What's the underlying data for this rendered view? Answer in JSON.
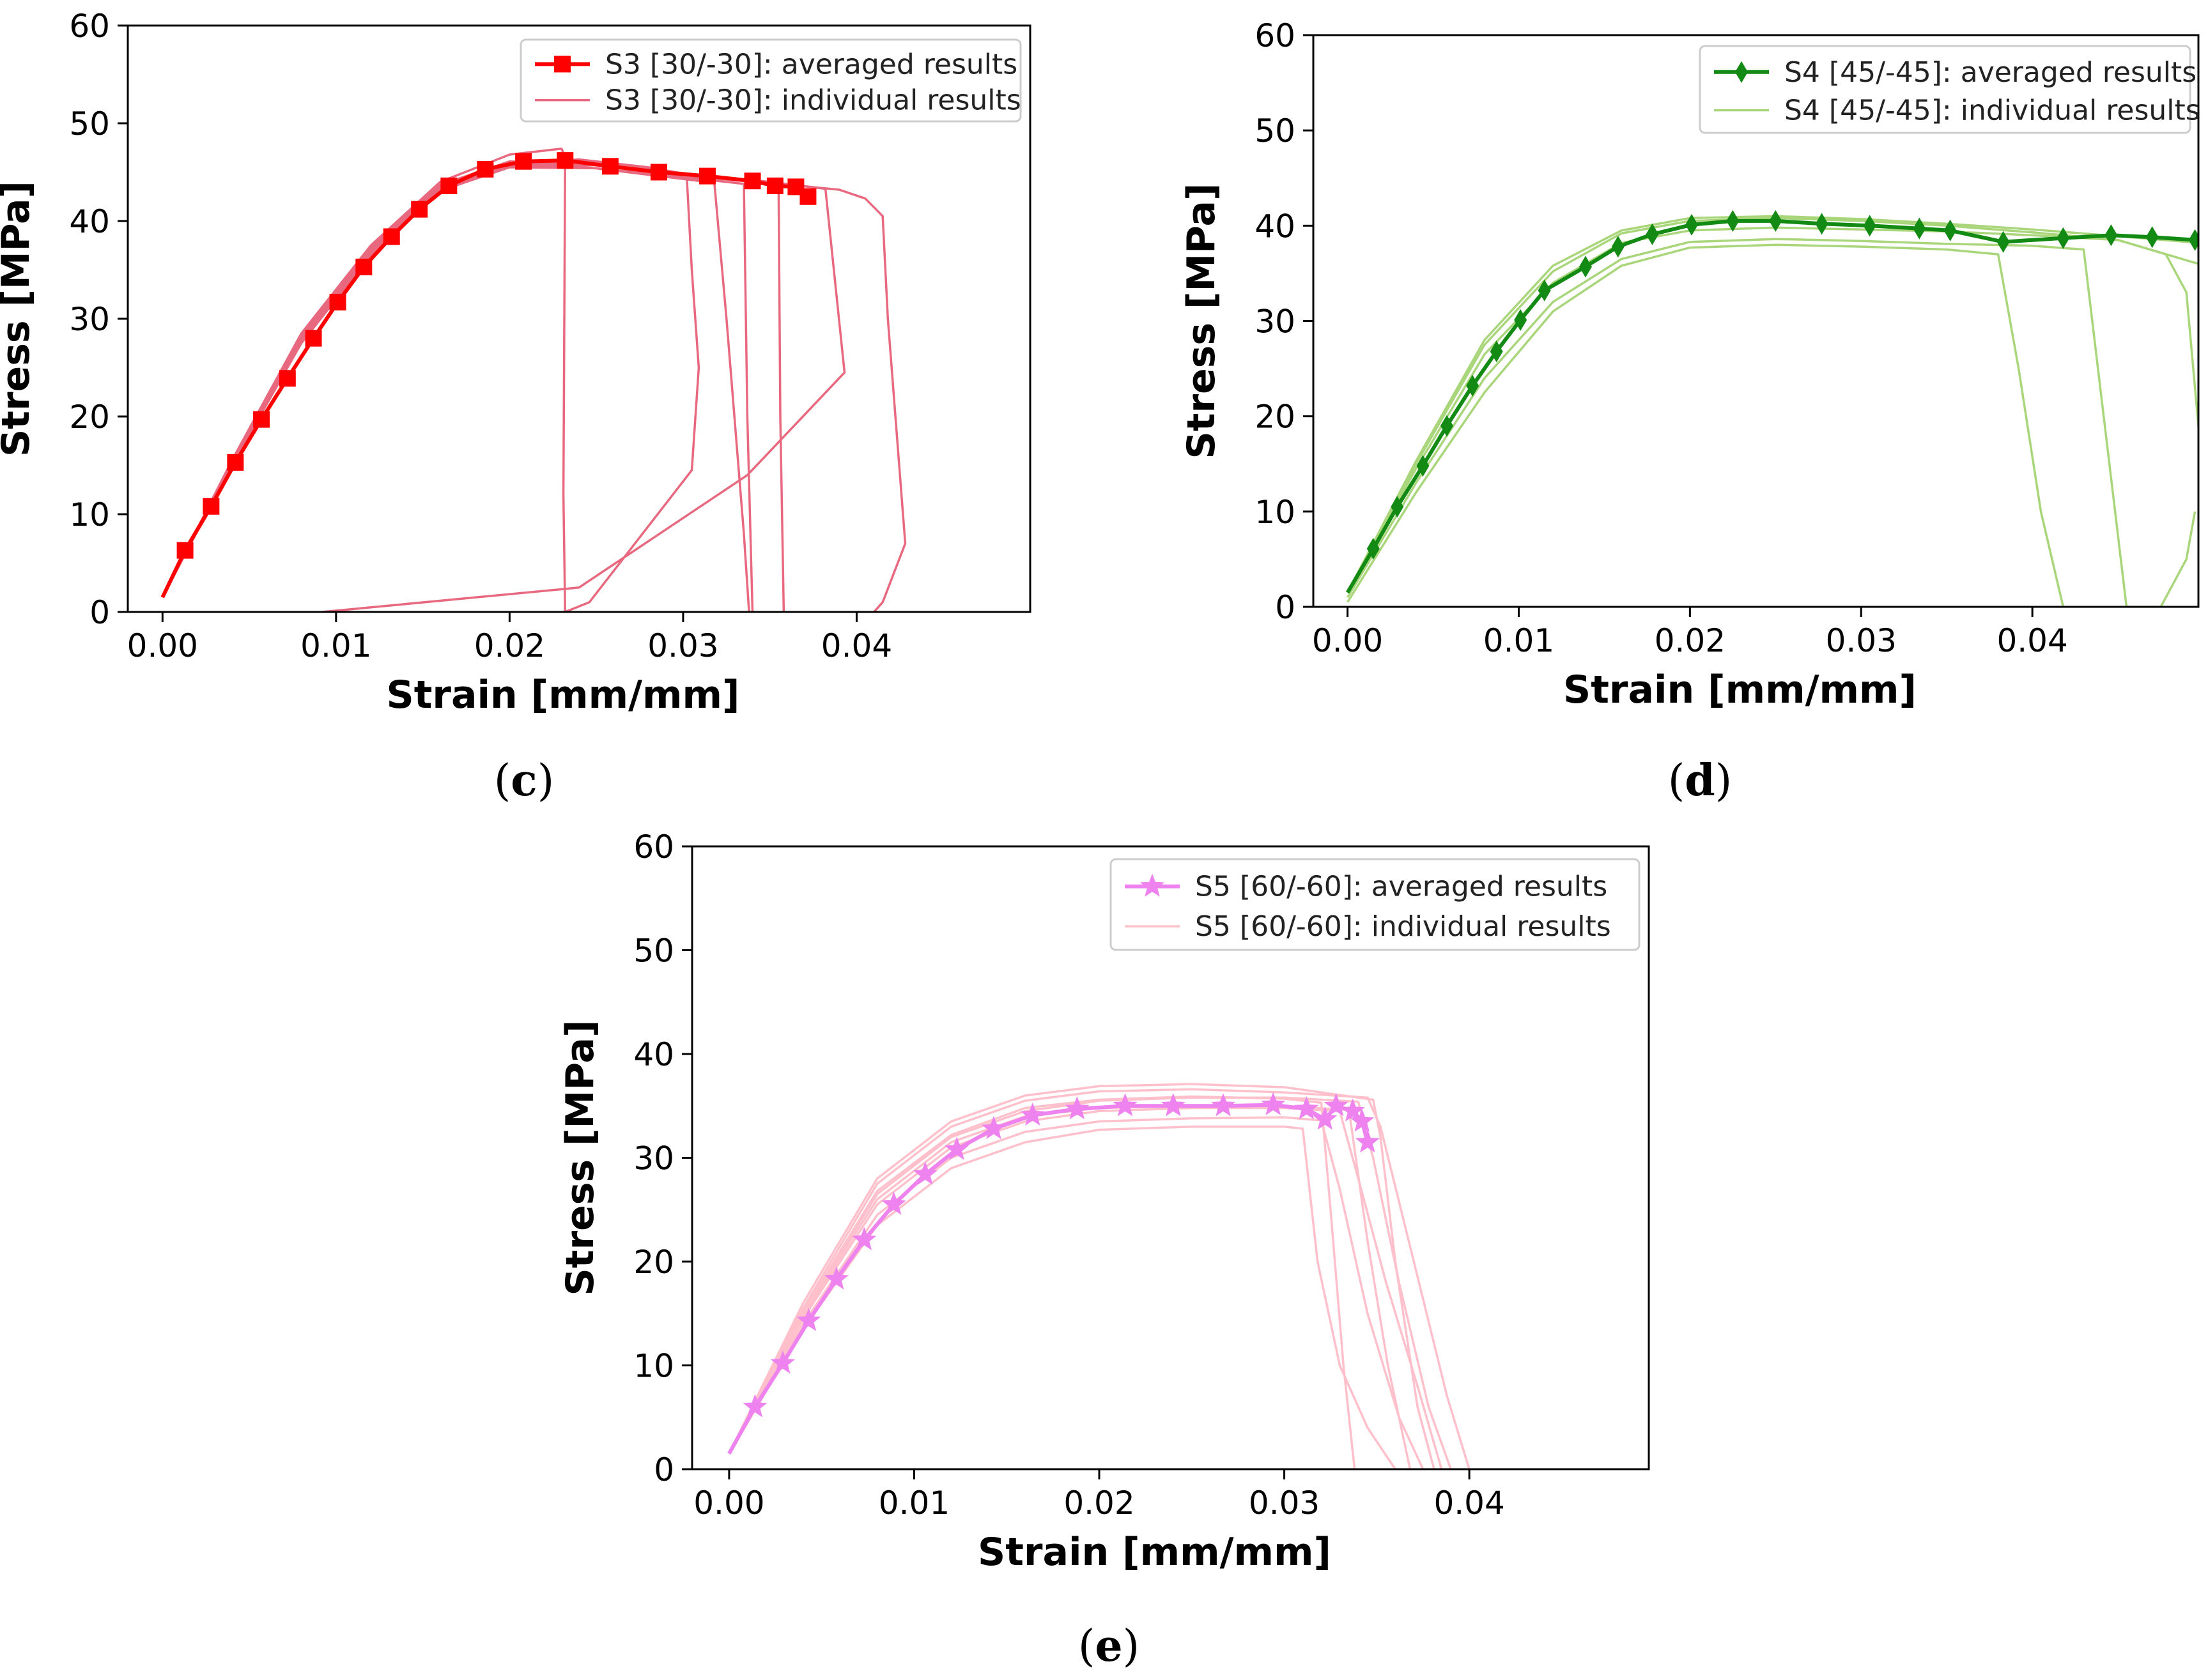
{
  "figure": {
    "panels": [
      "c",
      "d",
      "e"
    ]
  },
  "chart_data": [
    {
      "id": "c",
      "type": "line",
      "caption": "c",
      "xlabel": "Strain [mm/mm]",
      "ylabel": "Stress [MPa]",
      "xlim": [
        -0.002,
        0.05
      ],
      "ylim": [
        0,
        60
      ],
      "xticks": [
        0.0,
        0.01,
        0.02,
        0.03,
        0.04
      ],
      "xtick_labels": [
        "0.00",
        "0.01",
        "0.02",
        "0.03",
        "0.04"
      ],
      "yticks": [
        0,
        10,
        20,
        30,
        40,
        50,
        60
      ],
      "ytick_labels": [
        "0",
        "10",
        "20",
        "30",
        "40",
        "50",
        "60"
      ],
      "legend": {
        "location": "upper right",
        "entries": [
          "S3 [30/-30]: averaged results",
          "S3 [30/-30]: individual results"
        ]
      },
      "colors": {
        "average": "#ff0000",
        "individual": "#e8697f"
      },
      "marker": "square",
      "series": [
        {
          "name": "S3 [30/-30]: averaged results",
          "role": "average",
          "x": [
            0.0,
            0.0013,
            0.0028,
            0.0042,
            0.0057,
            0.0072,
            0.0087,
            0.0101,
            0.0116,
            0.0132,
            0.0148,
            0.0165,
            0.0186,
            0.0208,
            0.0232,
            0.0258,
            0.0286,
            0.0314,
            0.034,
            0.0353,
            0.0365,
            0.0372
          ],
          "y": [
            1.5,
            6.3,
            10.8,
            15.3,
            19.7,
            23.9,
            28.0,
            31.7,
            35.3,
            38.4,
            41.2,
            43.6,
            45.3,
            46.1,
            46.2,
            45.6,
            45.0,
            44.6,
            44.1,
            43.6,
            43.5,
            42.5
          ]
        },
        {
          "name": "S3 individual 1",
          "role": "individual",
          "x": [
            0.0,
            0.004,
            0.008,
            0.012,
            0.016,
            0.02,
            0.023,
            0.0232,
            0.0231,
            0.0232
          ],
          "y": [
            1.5,
            15.5,
            28.5,
            37.5,
            44.0,
            46.8,
            47.4,
            46.5,
            12.0,
            0.0
          ]
        },
        {
          "name": "S3 individual 2",
          "role": "individual",
          "x": [
            0.0,
            0.004,
            0.008,
            0.012,
            0.016,
            0.02,
            0.024,
            0.028,
            0.0302,
            0.0305,
            0.0309,
            0.0305,
            0.0246,
            0.0232
          ],
          "y": [
            1.5,
            15.0,
            27.5,
            36.5,
            43.0,
            45.8,
            46.3,
            45.5,
            44.8,
            35.0,
            25.0,
            14.5,
            1.0,
            0.0
          ]
        },
        {
          "name": "S3 individual 3",
          "role": "individual",
          "x": [
            0.0,
            0.004,
            0.008,
            0.012,
            0.016,
            0.02,
            0.024,
            0.03,
            0.0318,
            0.0325,
            0.0335,
            0.0338
          ],
          "y": [
            1.5,
            15.2,
            28.0,
            37.0,
            43.3,
            45.7,
            45.6,
            44.3,
            43.9,
            30.0,
            8.0,
            0.0
          ]
        },
        {
          "name": "S3 individual 4",
          "role": "individual",
          "x": [
            0.0,
            0.004,
            0.008,
            0.012,
            0.016,
            0.02,
            0.025,
            0.031,
            0.0335,
            0.0337,
            0.034
          ],
          "y": [
            1.5,
            15.0,
            27.8,
            36.8,
            43.1,
            45.5,
            45.4,
            44.3,
            43.8,
            20.0,
            0.0
          ]
        },
        {
          "name": "S3 individual 5",
          "role": "individual",
          "x": [
            0.0,
            0.004,
            0.008,
            0.012,
            0.016,
            0.02,
            0.025,
            0.03,
            0.0355,
            0.0356,
            0.0358
          ],
          "y": [
            1.5,
            15.1,
            27.9,
            37.1,
            43.4,
            45.9,
            45.7,
            44.6,
            43.8,
            20.0,
            0.0
          ]
        },
        {
          "name": "S3 individual 6",
          "role": "individual",
          "x": [
            0.0,
            0.004,
            0.008,
            0.012,
            0.016,
            0.02,
            0.025,
            0.03,
            0.035,
            0.0382,
            0.0393,
            0.0337,
            0.024,
            0.0092
          ],
          "y": [
            1.5,
            15.3,
            28.2,
            37.3,
            43.6,
            46.0,
            45.8,
            44.9,
            44.0,
            43.3,
            24.5,
            14.0,
            2.5,
            0.0
          ]
        },
        {
          "name": "S3 individual 7",
          "role": "individual",
          "x": [
            0.0,
            0.004,
            0.008,
            0.012,
            0.016,
            0.02,
            0.025,
            0.03,
            0.035,
            0.039,
            0.0405,
            0.0415,
            0.0418,
            0.0428,
            0.0415,
            0.041
          ],
          "y": [
            1.5,
            15.4,
            28.3,
            37.4,
            43.7,
            46.1,
            45.9,
            44.9,
            43.9,
            43.2,
            42.3,
            40.5,
            30.0,
            7.0,
            1.0,
            0.0
          ]
        }
      ]
    },
    {
      "id": "d",
      "type": "line",
      "caption": "d",
      "xlabel": "Strain [mm/mm]",
      "ylabel": "Stress [MPa]",
      "xlim": [
        -0.002,
        0.0497
      ],
      "ylim": [
        0,
        60
      ],
      "xticks": [
        0.0,
        0.01,
        0.02,
        0.03,
        0.04
      ],
      "xtick_labels": [
        "0.00",
        "0.01",
        "0.02",
        "0.03",
        "0.04"
      ],
      "yticks": [
        0,
        10,
        20,
        30,
        40,
        50,
        60
      ],
      "ytick_labels": [
        "0",
        "10",
        "20",
        "30",
        "40",
        "50",
        "60"
      ],
      "legend": {
        "location": "upper right",
        "entries": [
          "S4 [45/-45]: averaged results",
          "S4 [45/-45]: individual results"
        ]
      },
      "colors": {
        "average": "#138a13",
        "individual": "#a9d67a"
      },
      "marker": "thin_diamond",
      "series": [
        {
          "name": "S4 [45/-45]: averaged results",
          "role": "average",
          "x": [
            0.0,
            0.0015,
            0.0029,
            0.0044,
            0.0058,
            0.0073,
            0.0087,
            0.0101,
            0.0115,
            0.0139,
            0.0158,
            0.0178,
            0.0201,
            0.0225,
            0.025,
            0.0277,
            0.0305,
            0.0334,
            0.0352,
            0.0383,
            0.0418,
            0.0446,
            0.047,
            0.0495
          ],
          "y": [
            1.5,
            6.1,
            10.5,
            14.8,
            19.0,
            23.2,
            26.8,
            30.1,
            33.2,
            35.7,
            37.8,
            39.1,
            40.1,
            40.5,
            40.5,
            40.2,
            40.0,
            39.7,
            39.5,
            38.3,
            38.7,
            39.0,
            38.8,
            38.5
          ]
        },
        {
          "name": "S4 individual 1",
          "role": "individual",
          "x": [
            0.0,
            0.004,
            0.008,
            0.012,
            0.016,
            0.02,
            0.025,
            0.03,
            0.035,
            0.038,
            0.0392,
            0.0405,
            0.0418
          ],
          "y": [
            0.5,
            12.0,
            22.5,
            31.0,
            35.8,
            37.7,
            38.0,
            37.8,
            37.5,
            37.0,
            25.0,
            10.0,
            0.0
          ]
        },
        {
          "name": "S4 individual 2",
          "role": "individual",
          "x": [
            0.0,
            0.004,
            0.008,
            0.012,
            0.016,
            0.02,
            0.025,
            0.03,
            0.035,
            0.04,
            0.043,
            0.0435,
            0.0445,
            0.0455,
            0.0475,
            0.049,
            0.0495
          ],
          "y": [
            1.0,
            13.0,
            24.0,
            32.0,
            36.5,
            38.3,
            38.6,
            38.4,
            38.1,
            37.9,
            37.5,
            30.0,
            15.0,
            0.0,
            0.0,
            5.0,
            10.0
          ]
        },
        {
          "name": "S4 individual 3",
          "role": "individual",
          "x": [
            0.0,
            0.004,
            0.008,
            0.012,
            0.016,
            0.02,
            0.025,
            0.03,
            0.035,
            0.04,
            0.045,
            0.0478,
            0.049,
            0.0497
          ],
          "y": [
            1.5,
            14.5,
            26.5,
            34.0,
            38.2,
            39.5,
            39.8,
            39.6,
            39.4,
            39.0,
            38.5,
            37.0,
            33.0,
            19.0
          ]
        },
        {
          "name": "S4 individual 4",
          "role": "individual",
          "x": [
            0.0,
            0.004,
            0.008,
            0.012,
            0.016,
            0.02,
            0.025,
            0.03,
            0.035,
            0.04,
            0.045,
            0.0497
          ],
          "y": [
            1.5,
            15.0,
            27.5,
            35.2,
            39.2,
            40.5,
            40.8,
            40.5,
            40.0,
            39.3,
            38.5,
            36.0
          ]
        },
        {
          "name": "S4 individual 5",
          "role": "individual",
          "x": [
            0.0,
            0.004,
            0.008,
            0.012,
            0.016,
            0.02,
            0.025,
            0.03,
            0.035,
            0.04,
            0.045,
            0.0497
          ],
          "y": [
            1.5,
            15.3,
            28.0,
            35.8,
            39.5,
            40.8,
            41.0,
            40.7,
            40.2,
            39.6,
            38.9,
            38.2
          ]
        }
      ]
    },
    {
      "id": "e",
      "type": "line",
      "caption": "e",
      "xlabel": "Strain [mm/mm]",
      "ylabel": "Stress [MPa]",
      "xlim": [
        -0.002,
        0.0497
      ],
      "ylim": [
        0,
        60
      ],
      "xticks": [
        0.0,
        0.01,
        0.02,
        0.03,
        0.04
      ],
      "xtick_labels": [
        "0.00",
        "0.01",
        "0.02",
        "0.03",
        "0.04"
      ],
      "yticks": [
        0,
        10,
        20,
        30,
        40,
        50,
        60
      ],
      "ytick_labels": [
        "0",
        "10",
        "20",
        "30",
        "40",
        "50",
        "60"
      ],
      "legend": {
        "location": "upper right",
        "entries": [
          "S5 [60/-60]: averaged results",
          "S5 [60/-60]: individual results"
        ]
      },
      "colors": {
        "average": "#ee82ee",
        "individual": "#ffc0cb"
      },
      "marker": "star",
      "series": [
        {
          "name": "S5 [60/-60]: averaged results",
          "role": "average",
          "x": [
            0.0,
            0.0014,
            0.0029,
            0.0043,
            0.0058,
            0.0073,
            0.0089,
            0.0106,
            0.0123,
            0.0143,
            0.0164,
            0.0188,
            0.0214,
            0.024,
            0.0267,
            0.0294,
            0.0312,
            0.0322,
            0.0328,
            0.0337,
            0.0342,
            0.0345
          ],
          "y": [
            1.5,
            6.0,
            10.2,
            14.3,
            18.3,
            22.1,
            25.5,
            28.4,
            30.8,
            32.8,
            34.1,
            34.7,
            35.0,
            35.0,
            35.0,
            35.1,
            34.7,
            33.7,
            35.0,
            34.5,
            33.5,
            31.5
          ]
        },
        {
          "name": "S5 individual 1",
          "role": "individual",
          "x": [
            0.0,
            0.004,
            0.008,
            0.012,
            0.016,
            0.02,
            0.025,
            0.03,
            0.031,
            0.0318,
            0.033,
            0.0345,
            0.036
          ],
          "y": [
            1.5,
            13.5,
            23.5,
            29.0,
            31.5,
            32.7,
            33.0,
            33.0,
            32.8,
            20.0,
            10.0,
            4.0,
            0.0
          ]
        },
        {
          "name": "S5 individual 2",
          "role": "individual",
          "x": [
            0.0,
            0.004,
            0.008,
            0.012,
            0.016,
            0.02,
            0.025,
            0.03,
            0.032,
            0.033,
            0.0345,
            0.0362,
            0.0375
          ],
          "y": [
            1.5,
            14.0,
            24.5,
            30.0,
            32.5,
            33.5,
            33.8,
            33.9,
            33.6,
            27.0,
            15.0,
            5.0,
            0.0
          ]
        },
        {
          "name": "S5 individual 3",
          "role": "individual",
          "x": [
            0.0,
            0.004,
            0.008,
            0.012,
            0.016,
            0.02,
            0.025,
            0.03,
            0.033,
            0.034,
            0.0355,
            0.0372,
            0.0385
          ],
          "y": [
            1.5,
            14.5,
            25.5,
            31.0,
            33.5,
            34.5,
            34.8,
            34.8,
            34.5,
            28.0,
            18.0,
            8.0,
            0.0
          ]
        },
        {
          "name": "S5 individual 4",
          "role": "individual",
          "x": [
            0.0,
            0.004,
            0.008,
            0.012,
            0.016,
            0.02,
            0.025,
            0.03,
            0.034,
            0.0348,
            0.0362,
            0.0378,
            0.039
          ],
          "y": [
            1.5,
            15.0,
            26.5,
            32.0,
            34.5,
            35.5,
            35.8,
            35.8,
            35.4,
            30.0,
            18.0,
            6.0,
            0.0
          ]
        },
        {
          "name": "S5 individual 5",
          "role": "individual",
          "x": [
            0.0,
            0.004,
            0.008,
            0.012,
            0.016,
            0.02,
            0.025,
            0.03,
            0.0345,
            0.0352,
            0.037,
            0.0388,
            0.04
          ],
          "y": [
            1.5,
            15.5,
            27.5,
            33.0,
            35.5,
            36.4,
            36.6,
            36.3,
            35.8,
            33.0,
            20.0,
            7.0,
            0.0
          ]
        },
        {
          "name": "S5 individual 6",
          "role": "individual",
          "x": [
            0.0,
            0.004,
            0.008,
            0.012,
            0.016,
            0.02,
            0.025,
            0.03,
            0.0348,
            0.0352,
            0.036,
            0.0372,
            0.0381
          ],
          "y": [
            1.5,
            16.0,
            28.0,
            33.5,
            36.0,
            36.9,
            37.1,
            36.8,
            35.6,
            32.0,
            20.0,
            6.0,
            0.0
          ]
        },
        {
          "name": "S5 individual 7",
          "role": "individual",
          "x": [
            0.0,
            0.004,
            0.008,
            0.012,
            0.016,
            0.02,
            0.025,
            0.03,
            0.0335,
            0.0345,
            0.0356,
            0.0368
          ],
          "y": [
            1.5,
            14.8,
            26.0,
            31.5,
            34.0,
            34.8,
            35.0,
            35.0,
            34.6,
            22.0,
            10.0,
            0.0
          ]
        },
        {
          "name": "S5 individual 8",
          "role": "individual",
          "x": [
            0.0,
            0.004,
            0.008,
            0.012,
            0.016,
            0.02,
            0.025,
            0.03,
            0.032,
            0.0325,
            0.0332,
            0.0338
          ],
          "y": [
            1.5,
            15.2,
            26.8,
            32.2,
            34.8,
            35.6,
            35.9,
            35.7,
            35.3,
            25.0,
            10.0,
            0.0
          ]
        }
      ]
    }
  ]
}
